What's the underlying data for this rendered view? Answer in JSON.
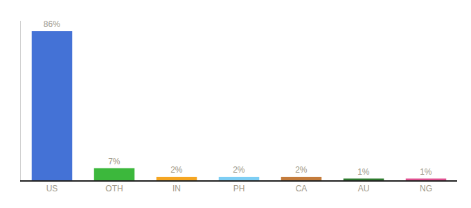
{
  "chart_data": {
    "type": "bar",
    "categories": [
      "US",
      "OTH",
      "IN",
      "PH",
      "CA",
      "AU",
      "NG"
    ],
    "values": [
      86,
      7,
      2,
      2,
      2,
      1,
      1
    ],
    "value_labels": [
      "86%",
      "7%",
      "2%",
      "2%",
      "2%",
      "1%",
      "1%"
    ],
    "colors": [
      "#4472d6",
      "#3cb83c",
      "#f5a623",
      "#7ecef4",
      "#c47c3c",
      "#2d7a2d",
      "#e05090"
    ],
    "ylim": [
      0,
      92
    ],
    "grid": false,
    "data_labels": true,
    "tick_labels": "x"
  }
}
